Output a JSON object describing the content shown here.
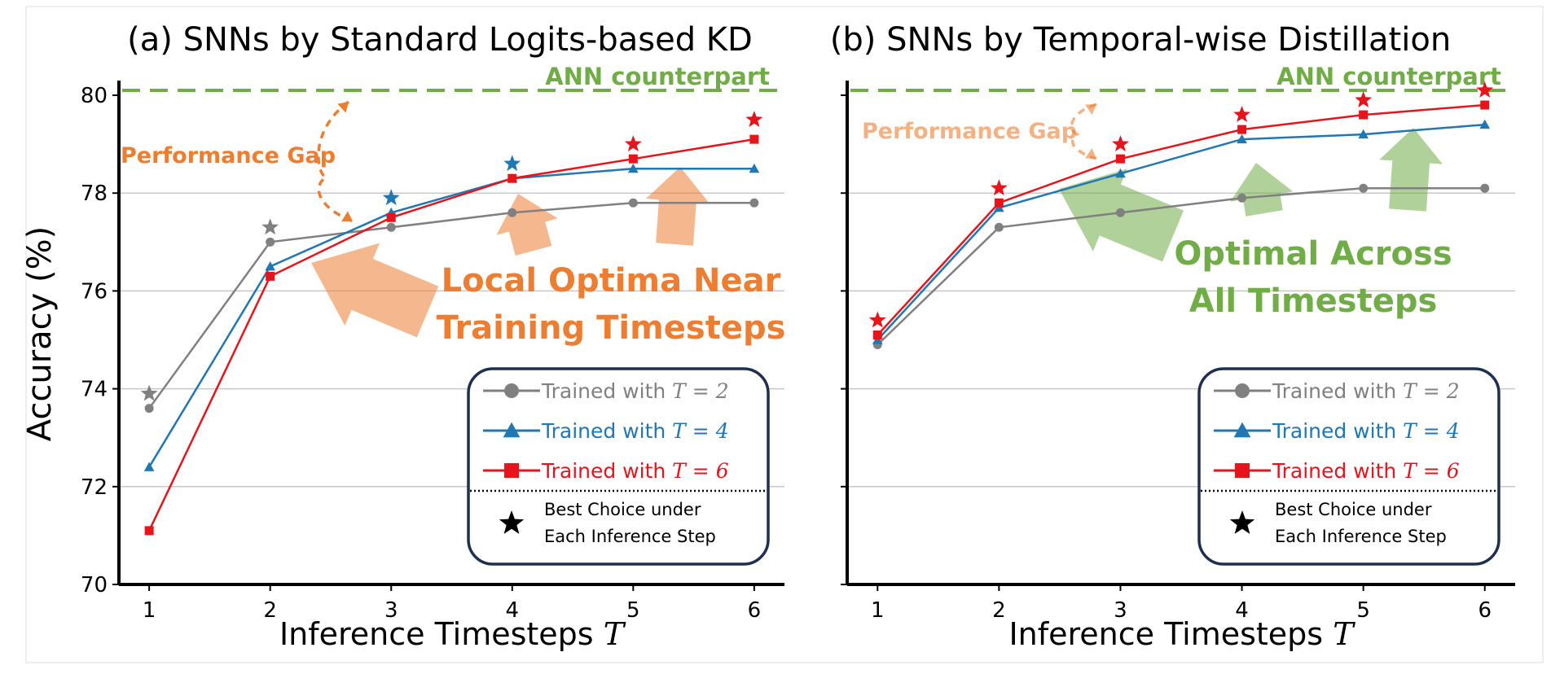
{
  "figure": {
    "ylabel": "Accuracy (%)",
    "xlabel_text": "Inference Timesteps",
    "xlabel_var": "T"
  },
  "chart_data": [
    {
      "type": "line",
      "title": "(a) SNNs by Standard Logits-based KD",
      "xlabel": "Inference Timesteps T",
      "ylabel": "Accuracy (%)",
      "x": [
        1,
        2,
        3,
        4,
        5,
        6
      ],
      "xlim": [
        0.75,
        6.25
      ],
      "ylim": [
        70,
        80.3
      ],
      "yticks": [
        70,
        72,
        74,
        76,
        78,
        80
      ],
      "grid": true,
      "series": [
        {
          "name": "Trained with T = 2",
          "color": "#808080",
          "marker": "circle",
          "values": [
            73.6,
            77.0,
            77.3,
            77.6,
            77.8,
            77.8
          ]
        },
        {
          "name": "Trained with T = 4",
          "color": "#1f77b4",
          "marker": "triangle",
          "values": [
            72.4,
            76.5,
            77.6,
            78.3,
            78.5,
            78.5
          ]
        },
        {
          "name": "Trained with T = 6",
          "color": "#e8141c",
          "marker": "square",
          "values": [
            71.1,
            76.3,
            77.5,
            78.3,
            78.7,
            79.1
          ]
        }
      ],
      "best": [
        {
          "x": 1,
          "y": 73.9,
          "color": "#808080"
        },
        {
          "x": 2,
          "y": 77.3,
          "color": "#808080"
        },
        {
          "x": 3,
          "y": 77.9,
          "color": "#1f77b4"
        },
        {
          "x": 4,
          "y": 78.6,
          "color": "#1f77b4"
        },
        {
          "x": 5,
          "y": 79.0,
          "color": "#e8141c"
        },
        {
          "x": 6,
          "y": 79.5,
          "color": "#e8141c"
        }
      ],
      "ann_accuracy": 80.1,
      "ann_label": "ANN counterpart",
      "gap_label": "Performance Gap",
      "annotation_lines": [
        "Local Optima Near",
        "Training Timesteps"
      ],
      "annotation_color": "#ed7d31"
    },
    {
      "type": "line",
      "title": "(b) SNNs by Temporal-wise Distillation",
      "xlabel": "Inference Timesteps T",
      "ylabel": "Accuracy (%)",
      "x": [
        1,
        2,
        3,
        4,
        5,
        6
      ],
      "xlim": [
        0.75,
        6.25
      ],
      "ylim": [
        70,
        80.3
      ],
      "yticks": [
        70,
        72,
        74,
        76,
        78,
        80
      ],
      "grid": true,
      "series": [
        {
          "name": "Trained with T = 2",
          "color": "#808080",
          "marker": "circle",
          "values": [
            74.9,
            77.3,
            77.6,
            77.9,
            78.1,
            78.1
          ]
        },
        {
          "name": "Trained with T = 4",
          "color": "#1f77b4",
          "marker": "triangle",
          "values": [
            75.0,
            77.7,
            78.4,
            79.1,
            79.2,
            79.4
          ]
        },
        {
          "name": "Trained with T = 6",
          "color": "#e8141c",
          "marker": "square",
          "values": [
            75.1,
            77.8,
            78.7,
            79.3,
            79.6,
            79.8
          ]
        }
      ],
      "best": [
        {
          "x": 1,
          "y": 75.4,
          "color": "#e8141c"
        },
        {
          "x": 2,
          "y": 78.1,
          "color": "#e8141c"
        },
        {
          "x": 3,
          "y": 79.0,
          "color": "#e8141c"
        },
        {
          "x": 4,
          "y": 79.6,
          "color": "#e8141c"
        },
        {
          "x": 5,
          "y": 79.9,
          "color": "#e8141c"
        },
        {
          "x": 6,
          "y": 80.1,
          "color": "#e8141c"
        }
      ],
      "ann_accuracy": 80.1,
      "ann_label": "ANN counterpart",
      "gap_label": "Performance Gap",
      "annotation_lines": [
        "Optimal Across",
        "All Timesteps"
      ],
      "annotation_color": "#70ad47"
    }
  ],
  "legend": {
    "placement": "bottom-right",
    "items": [
      {
        "prefix": "Trained with",
        "var": "T",
        "eq": "= 2",
        "color": "#808080",
        "marker": "circle"
      },
      {
        "prefix": "Trained with",
        "var": "T",
        "eq": "= 4",
        "color": "#1f77b4",
        "marker": "triangle"
      },
      {
        "prefix": "Trained with",
        "var": "T",
        "eq": "= 6",
        "color": "#e8141c",
        "marker": "square"
      }
    ],
    "best_lines": [
      "Best Choice under",
      "Each Inference Step"
    ]
  }
}
